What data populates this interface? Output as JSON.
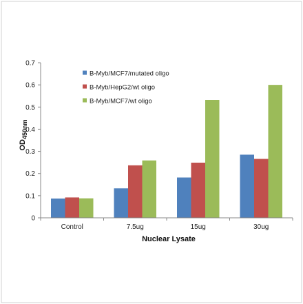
{
  "chart_data": {
    "type": "bar",
    "categories": [
      "Control",
      "7.5ug",
      "15ug",
      "30ug"
    ],
    "series": [
      {
        "name": "B-Myb/MCF7/mutated oligo",
        "color": "#4F81BD",
        "values": [
          0.087,
          0.133,
          0.182,
          0.285
        ]
      },
      {
        "name": "B-Myb/HepG2/wt oligo",
        "color": "#C0504D",
        "values": [
          0.092,
          0.237,
          0.249,
          0.266
        ]
      },
      {
        "name": "B-Myb/MCF7/wt oligo",
        "color": "#9BBB59",
        "values": [
          0.088,
          0.259,
          0.532,
          0.6
        ]
      }
    ],
    "xlabel": "Nuclear Lysate",
    "ylabel": {
      "main": "OD",
      "subscript": "450nm"
    },
    "ylim": [
      0,
      0.7
    ],
    "yticks": [
      "0",
      "0.1",
      "0.2",
      "0.3",
      "0.4",
      "0.5",
      "0.6",
      "0.7"
    ],
    "grid": false,
    "legend_position": "top-left"
  }
}
